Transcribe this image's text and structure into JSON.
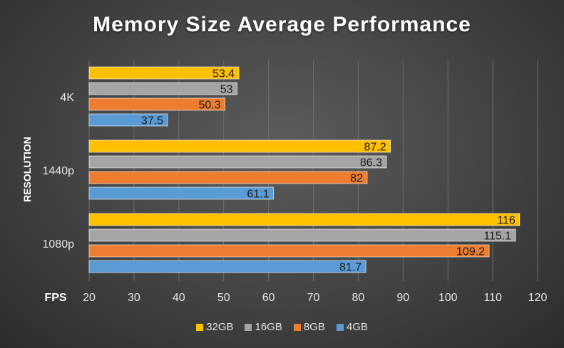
{
  "chart_data": {
    "type": "bar",
    "orientation": "horizontal",
    "title": "Memory Size Average Performance",
    "xlabel": "FPS",
    "ylabel": "RESOLUTION",
    "xlim": [
      20,
      120
    ],
    "xticks": [
      20,
      30,
      40,
      50,
      60,
      70,
      80,
      90,
      100,
      110,
      120
    ],
    "categories": [
      "4K",
      "1440p",
      "1080p"
    ],
    "grid": "vertical",
    "legend_position": "bottom",
    "data_labels": true,
    "series": [
      {
        "name": "32GB",
        "color": "#FFC000",
        "values": [
          53.4,
          87.2,
          116
        ]
      },
      {
        "name": "16GB",
        "color": "#A5A5A5",
        "values": [
          53,
          86.3,
          115.1
        ]
      },
      {
        "name": "8GB",
        "color": "#ED7D31",
        "values": [
          50.3,
          82,
          109.2
        ]
      },
      {
        "name": "4GB",
        "color": "#5B9BD5",
        "values": [
          37.5,
          61.1,
          81.7
        ]
      }
    ]
  }
}
